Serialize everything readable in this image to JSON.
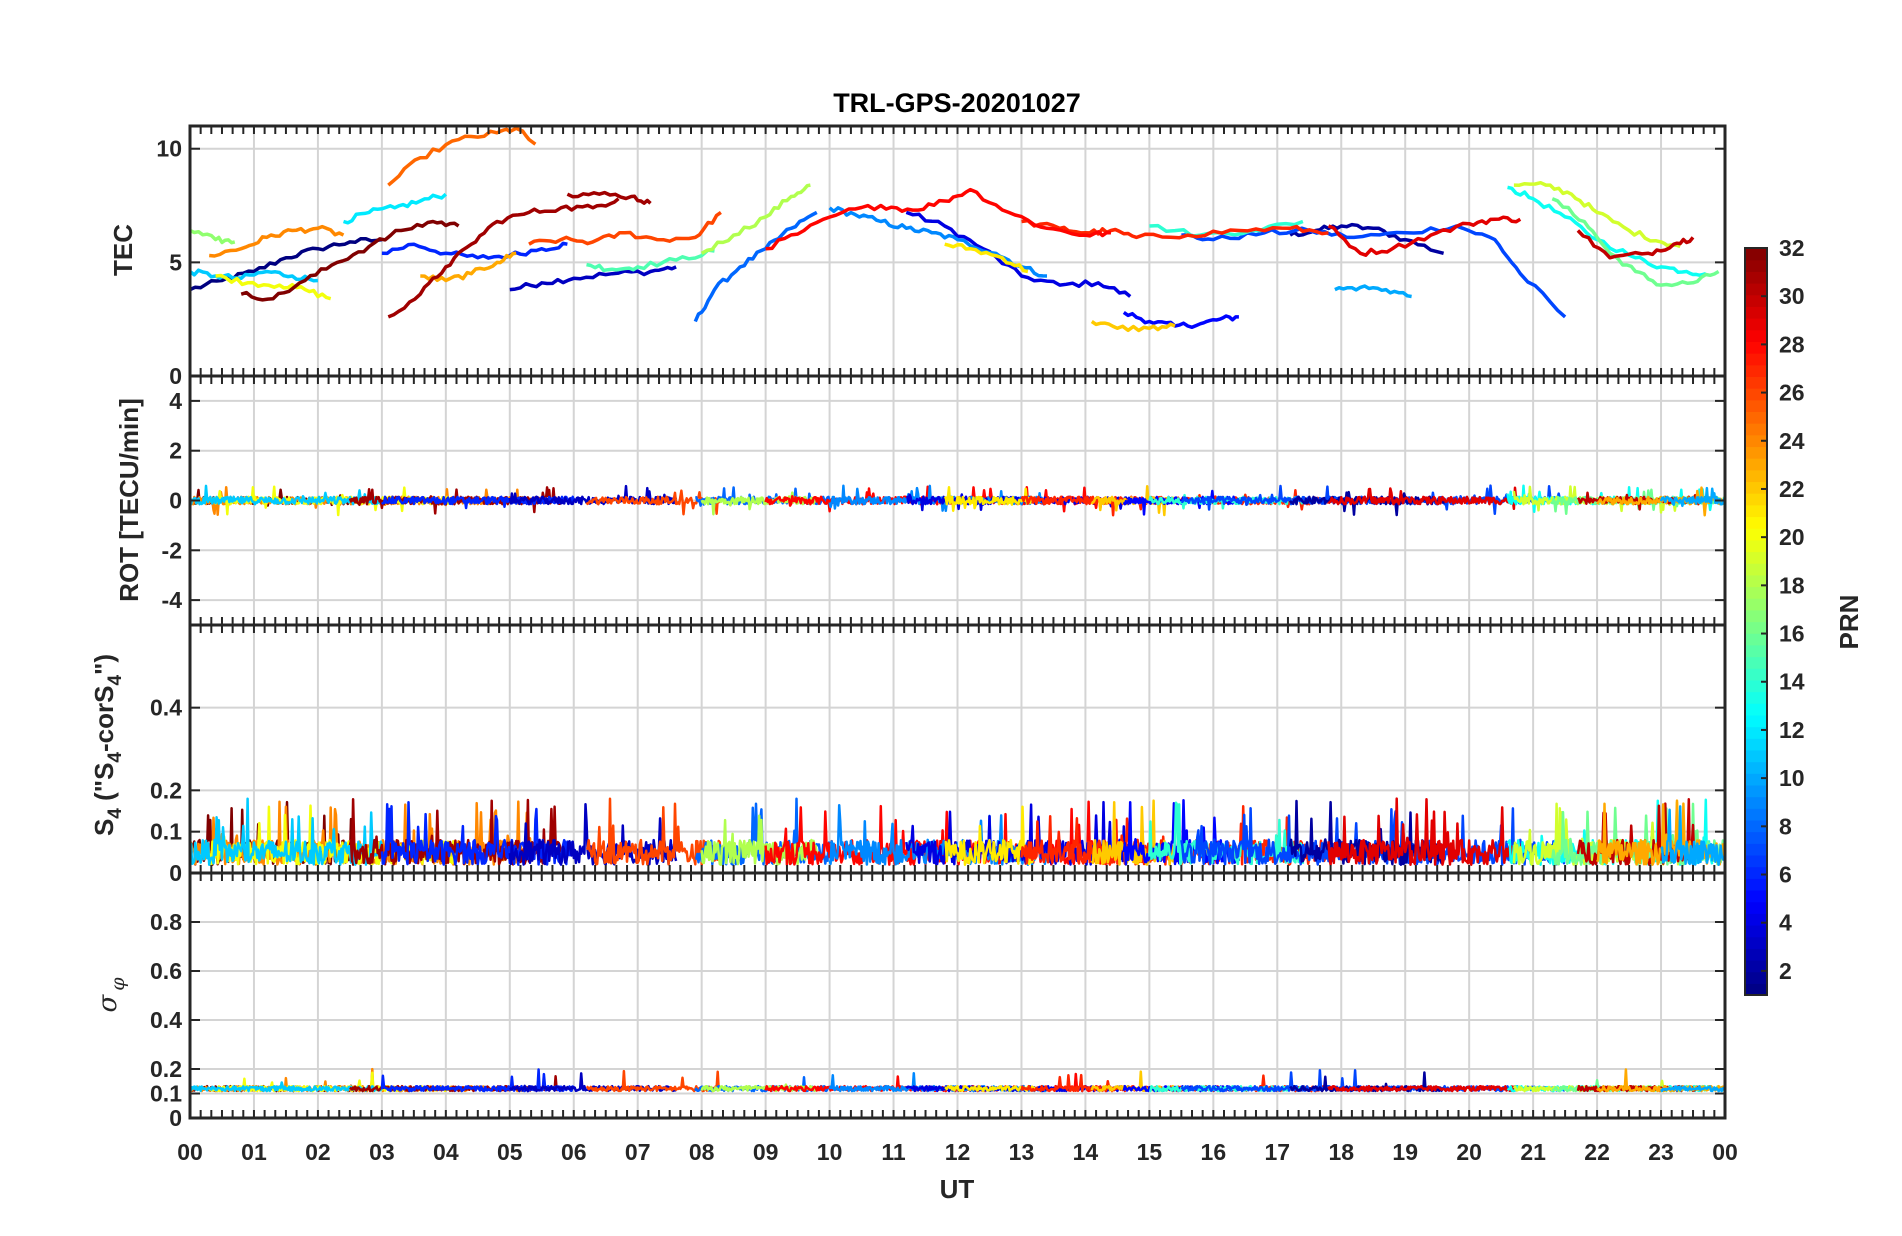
{
  "chart_data": {
    "type": "line",
    "title": "TRL-GPS-20201027",
    "xlabel": "UT",
    "x_ticks": [
      "00",
      "01",
      "02",
      "03",
      "04",
      "05",
      "06",
      "07",
      "08",
      "09",
      "10",
      "11",
      "12",
      "13",
      "14",
      "15",
      "16",
      "17",
      "18",
      "19",
      "20",
      "21",
      "22",
      "23",
      "00"
    ],
    "x_range": [
      0,
      24
    ],
    "panels": [
      {
        "id": "tec",
        "ylabel": "TEC",
        "ylim": [
          0,
          11
        ],
        "yticks": [
          0,
          5,
          10
        ],
        "ytick_labels": [
          "0",
          "5",
          "10"
        ],
        "series": [
          {
            "prn": 1,
            "x": [
              0.0,
              0.5,
              1.0,
              1.5,
              2.0,
              2.5,
              3.0
            ],
            "y": [
              3.8,
              4.2,
              4.6,
              5.2,
              5.6,
              5.9,
              6.0
            ]
          },
          {
            "prn": 2,
            "x": [
              17.2,
              17.6,
              18.0,
              18.5,
              19.0,
              19.6
            ],
            "y": [
              6.2,
              6.4,
              6.6,
              6.5,
              6.0,
              5.4
            ]
          },
          {
            "prn": 3,
            "x": [
              5.0,
              5.5,
              6.0,
              6.6,
              7.2,
              7.6
            ],
            "y": [
              3.8,
              4.1,
              4.3,
              4.5,
              4.6,
              4.8
            ]
          },
          {
            "prn": 4,
            "x": [
              11.2,
              11.8,
              12.4,
              13.0,
              13.6,
              14.2,
              14.7
            ],
            "y": [
              7.2,
              6.6,
              5.6,
              4.4,
              4.0,
              4.1,
              3.5
            ]
          },
          {
            "prn": 5,
            "x": [
              14.6,
              15.0,
              15.4,
              15.8,
              16.1,
              16.4
            ],
            "y": [
              2.8,
              2.4,
              2.2,
              2.3,
              2.5,
              2.6
            ]
          },
          {
            "prn": 6,
            "x": [
              3.0,
              3.5,
              4.0,
              4.5,
              5.0,
              5.5,
              5.9
            ],
            "y": [
              5.4,
              5.8,
              5.4,
              5.2,
              5.3,
              5.6,
              5.8
            ]
          },
          {
            "prn": 7,
            "x": [
              15.5,
              16.0,
              16.8,
              17.5,
              18.2,
              19.0,
              19.8,
              20.4,
              20.8,
              21.5
            ],
            "y": [
              6.2,
              6.0,
              6.3,
              6.4,
              6.1,
              6.3,
              6.6,
              6.0,
              4.5,
              2.6
            ]
          },
          {
            "prn": 8,
            "x": [
              7.9,
              8.2,
              8.6,
              9.0,
              9.4,
              9.8
            ],
            "y": [
              2.4,
              3.8,
              4.8,
              5.6,
              6.5,
              7.2
            ]
          },
          {
            "prn": 9,
            "x": [
              10.0,
              10.4,
              10.8,
              11.2,
              11.6,
              12.0,
              12.6,
              13.0,
              13.4
            ],
            "y": [
              7.4,
              7.1,
              6.8,
              6.5,
              6.3,
              6.0,
              5.4,
              4.8,
              4.4
            ]
          },
          {
            "prn": 10,
            "x": [
              17.9,
              18.3,
              18.7,
              19.1
            ],
            "y": [
              3.8,
              3.9,
              3.8,
              3.5
            ]
          },
          {
            "prn": 11,
            "x": [
              0.0,
              0.4,
              0.8,
              1.2,
              1.6,
              2.0
            ],
            "y": [
              4.6,
              4.4,
              4.3,
              4.6,
              4.4,
              4.2
            ]
          },
          {
            "prn": 12,
            "x": [
              2.4,
              2.8,
              3.2,
              3.6,
              4.0
            ],
            "y": [
              6.8,
              7.2,
              7.4,
              7.7,
              8.0
            ]
          },
          {
            "prn": 13,
            "x": [
              20.6,
              21.0,
              21.5,
              22.0,
              22.6,
              23.0,
              23.4,
              23.7
            ],
            "y": [
              8.3,
              7.8,
              7.0,
              6.0,
              5.2,
              4.8,
              4.6,
              4.5
            ]
          },
          {
            "prn": 14,
            "x": [
              15.0,
              15.8,
              16.6,
              17.4
            ],
            "y": [
              6.6,
              6.2,
              6.4,
              6.8
            ]
          },
          {
            "prn": 15,
            "x": [
              6.2,
              6.6,
              7.0,
              7.6,
              8.2
            ],
            "y": [
              4.9,
              4.7,
              4.8,
              5.1,
              5.5
            ]
          },
          {
            "prn": 16,
            "x": [
              21.3,
              21.8,
              22.2,
              22.6,
              23.0,
              23.5,
              23.9
            ],
            "y": [
              7.8,
              6.8,
              5.4,
              4.6,
              4.0,
              4.1,
              4.6
            ]
          },
          {
            "prn": 17,
            "x": [
              0.0,
              0.4,
              0.7
            ],
            "y": [
              6.4,
              6.0,
              5.9
            ]
          },
          {
            "prn": 18,
            "x": [
              8.0,
              8.5,
              9.0,
              9.4,
              9.7
            ],
            "y": [
              5.4,
              6.2,
              7.0,
              7.9,
              8.4
            ]
          },
          {
            "prn": 19,
            "x": [
              20.7,
              21.2,
              21.6,
              22.0,
              22.5,
              23.0,
              23.3
            ],
            "y": [
              8.4,
              8.4,
              8.0,
              7.2,
              6.4,
              5.9,
              5.7
            ]
          },
          {
            "prn": 20,
            "x": [
              0.4,
              0.9,
              1.4,
              1.8,
              2.2
            ],
            "y": [
              4.4,
              4.1,
              4.0,
              3.8,
              3.4
            ]
          },
          {
            "prn": 21,
            "x": [
              11.8,
              12.2,
              12.7,
              13.1
            ],
            "y": [
              5.8,
              5.6,
              5.2,
              4.6
            ]
          },
          {
            "prn": 22,
            "x": [
              14.1,
              14.5,
              15.0,
              15.4
            ],
            "y": [
              2.4,
              2.1,
              2.1,
              2.2
            ]
          },
          {
            "prn": 23,
            "x": [
              3.6,
              4.0,
              4.4,
              4.8,
              5.1
            ],
            "y": [
              4.4,
              4.2,
              4.5,
              5.0,
              5.4
            ]
          },
          {
            "prn": 24,
            "x": [
              0.3,
              0.8,
              1.2,
              1.6,
              2.0,
              2.4
            ],
            "y": [
              5.3,
              5.6,
              6.1,
              6.4,
              6.5,
              6.2
            ]
          },
          {
            "prn": 25,
            "x": [
              3.1,
              3.6,
              4.2,
              4.8,
              5.1,
              5.4
            ],
            "y": [
              8.4,
              9.6,
              10.4,
              10.7,
              10.9,
              10.2
            ]
          },
          {
            "prn": 26,
            "x": [
              5.3,
              5.8,
              6.3,
              6.8,
              7.3,
              7.9,
              8.3
            ],
            "y": [
              5.8,
              6.0,
              5.9,
              6.3,
              6.0,
              6.1,
              7.2
            ]
          },
          {
            "prn": 27,
            "x": [
              13.0,
              13.6,
              14.0,
              14.4,
              14.8,
              15.6,
              16.4,
              17.2,
              17.8
            ],
            "y": [
              6.8,
              6.5,
              6.3,
              6.4,
              6.1,
              6.2,
              6.4,
              6.5,
              6.3
            ]
          },
          {
            "prn": 28,
            "x": [
              9.0,
              9.6,
              10.2,
              10.8,
              11.3,
              11.8,
              12.2,
              12.8,
              13.4,
              14.0,
              14.4
            ],
            "y": [
              5.6,
              6.4,
              7.2,
              7.5,
              7.3,
              7.7,
              8.2,
              7.2,
              6.5,
              6.2,
              6.3
            ]
          },
          {
            "prn": 29,
            "x": [
              17.8,
              18.3,
              18.8,
              19.4,
              20.0,
              20.4,
              20.8
            ],
            "y": [
              6.6,
              5.4,
              5.6,
              6.2,
              6.7,
              6.9,
              6.9
            ]
          },
          {
            "prn": 30,
            "x": [
              21.7,
              22.2,
              22.8,
              23.2,
              23.5
            ],
            "y": [
              6.4,
              5.2,
              5.4,
              5.8,
              6.1
            ]
          },
          {
            "prn": 31,
            "x": [
              5.9,
              6.4,
              6.9,
              7.2
            ],
            "y": [
              8.0,
              8.0,
              7.9,
              7.6
            ]
          },
          {
            "prn": 32,
            "x": [
              0.8,
              1.3,
              1.8,
              2.3,
              2.8,
              3.3,
              3.8,
              4.2
            ],
            "y": [
              3.6,
              3.4,
              4.2,
              5.0,
              5.7,
              6.4,
              6.8,
              6.6
            ]
          },
          {
            "prn": 31,
            "x": [
              3.1,
              3.6,
              4.0,
              4.4,
              4.8,
              5.3,
              5.8,
              6.3,
              6.7
            ],
            "y": [
              2.6,
              3.6,
              4.8,
              5.8,
              6.8,
              7.2,
              7.4,
              7.4,
              7.8
            ]
          }
        ]
      },
      {
        "id": "rot",
        "ylabel": "ROT [TECU/min]",
        "ylim": [
          -5,
          5
        ],
        "yticks": [
          -4,
          -2,
          0,
          2,
          4
        ],
        "ytick_labels": [
          "-4",
          "-2",
          "0",
          "2",
          "4"
        ],
        "description": "all PRNs fluctuate within about ±0.3 TECU/min around 0",
        "amplitude": 0.3
      },
      {
        "id": "s4",
        "ylabel_main": "S",
        "ylabel_sub": "4",
        "ylabel_rest": " (\"S",
        "ylabel_sub2": "4",
        "ylabel_rest2": "-corS",
        "ylabel_sub3": "4",
        "ylabel_end": "\")",
        "ylim": [
          0,
          0.6
        ],
        "yticks": [
          0,
          0.1,
          0.2,
          0.4
        ],
        "ytick_labels": [
          "0",
          "0.1",
          "0.2",
          "0.4"
        ],
        "description": "noisy values mostly 0.02–0.12 with spikes up to ~0.18",
        "base": 0.05,
        "max": 0.18
      },
      {
        "id": "sigma",
        "ylabel": "σ",
        "ylabel_sub": "φ",
        "ylim": [
          0,
          1
        ],
        "yticks": [
          0,
          0.1,
          0.2,
          0.4,
          0.6,
          0.8
        ],
        "ytick_labels": [
          "0",
          "0.1",
          "0.2",
          "0.4",
          "0.6",
          "0.8"
        ],
        "description": "values near 0.12 with small spikes to ~0.2",
        "base": 0.12,
        "max": 0.2
      }
    ],
    "colorbar": {
      "label": "PRN",
      "range": [
        1,
        32
      ],
      "ticks": [
        2,
        4,
        6,
        8,
        10,
        12,
        14,
        16,
        18,
        20,
        22,
        24,
        26,
        28,
        30,
        32
      ],
      "tick_labels": [
        "2",
        "4",
        "6",
        "8",
        "10",
        "12",
        "14",
        "16",
        "18",
        "20",
        "22",
        "24",
        "26",
        "28",
        "30",
        "32"
      ],
      "colormap": "jet"
    }
  }
}
